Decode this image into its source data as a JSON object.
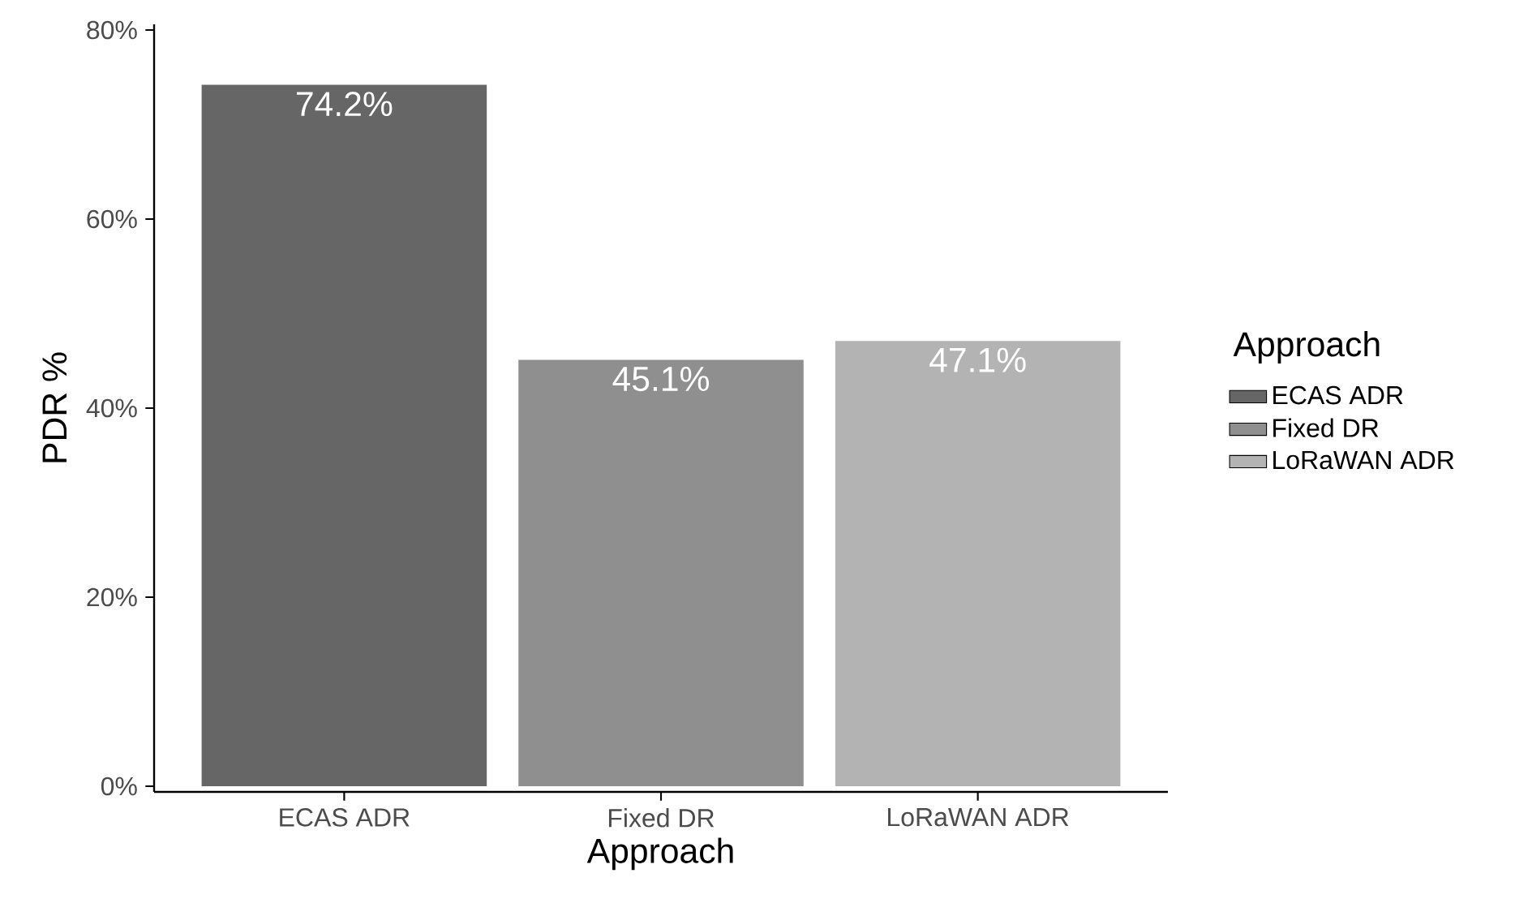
{
  "chart_data": {
    "type": "bar",
    "xlabel": "Approach",
    "ylabel": "PDR %",
    "legend_title": "Approach",
    "categories": [
      "ECAS ADR",
      "Fixed DR",
      "LoRaWAN ADR"
    ],
    "series": [
      {
        "name": "ECAS ADR",
        "color": "#666666",
        "values": [
          74.2,
          null,
          null
        ]
      },
      {
        "name": "Fixed DR",
        "color": "#8f8f8f",
        "values": [
          null,
          45.1,
          null
        ]
      },
      {
        "name": "LoRaWAN ADR",
        "color": "#b3b3b3",
        "values": [
          null,
          null,
          47.1
        ]
      }
    ],
    "stacked": true,
    "value_labels": [
      "74.2%",
      "45.1%",
      "47.1%"
    ],
    "ylim": [
      -0.6,
      80.6
    ],
    "yticks": [
      {
        "value": 0,
        "label": "0%"
      },
      {
        "value": 20,
        "label": "20%"
      },
      {
        "value": 40,
        "label": "40%"
      },
      {
        "value": 60,
        "label": "60%"
      },
      {
        "value": 80,
        "label": "80%"
      }
    ],
    "legend": "right",
    "grid": false
  }
}
